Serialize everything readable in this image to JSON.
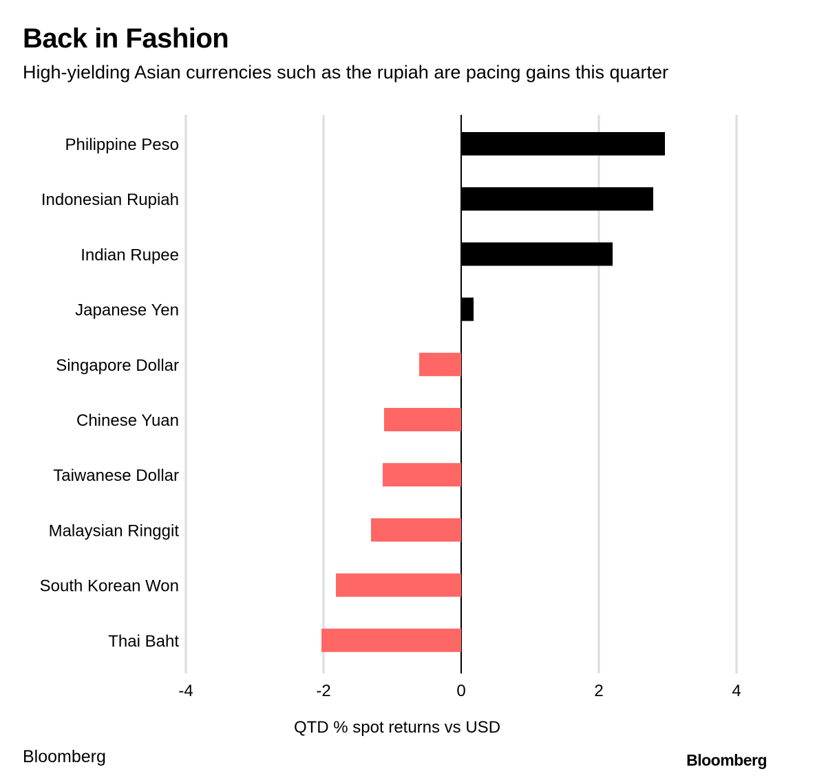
{
  "header": {
    "title": "Back in Fashion",
    "subtitle": "High-yielding Asian currencies such as the rupiah are pacing gains this quarter"
  },
  "footer": {
    "source": "Bloomberg",
    "brand": "Bloomberg"
  },
  "colors": {
    "positive": "#000000",
    "negative": "#ff6666",
    "grid": "#dcdcdc",
    "zero_line": "#000000"
  },
  "chart_data": {
    "type": "bar",
    "orientation": "horizontal",
    "categories": [
      "Philippine Peso",
      "Indonesian Rupiah",
      "Indian Rupee",
      "Japanese Yen",
      "Singapore Dollar",
      "Chinese Yuan",
      "Taiwanese Dollar",
      "Malaysian Ringgit",
      "South Korean Won",
      "Thai Baht"
    ],
    "values": [
      2.96,
      2.79,
      2.2,
      0.18,
      -0.61,
      -1.12,
      -1.14,
      -1.31,
      -1.82,
      -2.03
    ],
    "title": "Back in Fashion",
    "subtitle": "High-yielding Asian currencies such as the rupiah are pacing gains this quarter",
    "xlabel": "QTD % spot returns vs USD",
    "ylabel": "",
    "xlim": [
      -4,
      4
    ],
    "xticks": [
      -4,
      -2,
      0,
      2,
      4
    ],
    "xtick_labels": [
      "-4",
      "-2",
      "0",
      "2",
      "4"
    ],
    "grid": true
  }
}
